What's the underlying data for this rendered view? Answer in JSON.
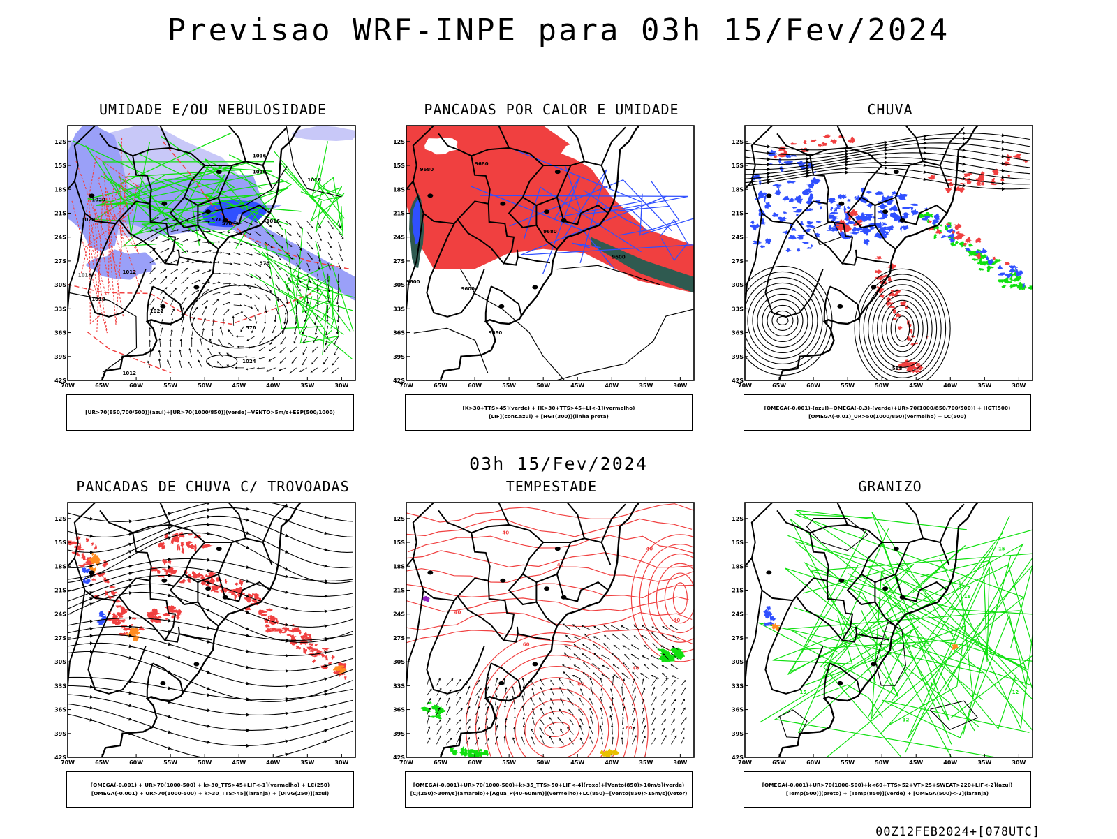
{
  "header": {
    "title": "Previsao WRF-INPE  para 03h 15/Fev/2024"
  },
  "mid_title": "03h 15/Fev/2024",
  "footer": "00Z12FEB2024+[078UTC]",
  "axes": {
    "lat_labels": [
      "12S",
      "15S",
      "18S",
      "21S",
      "24S",
      "27S",
      "30S",
      "33S",
      "36S",
      "39S",
      "42S"
    ],
    "lon_labels": [
      "70W",
      "65W",
      "60W",
      "55W",
      "50W",
      "45W",
      "40W",
      "35W",
      "30W"
    ]
  },
  "colors": {
    "blue": "#3050ff",
    "light_blue": "#9aa0f8",
    "lavender": "#c8c8f8",
    "red": "#f04040",
    "green": "#10e010",
    "dark_teal": "#2f5a50",
    "orange": "#ff8c20",
    "yellow": "#e8c000",
    "purple": "#9020c0",
    "black": "#000000"
  },
  "panels": [
    {
      "title": "UMIDADE E/OU NEBULOSIDADE",
      "legend": [
        "[UR>70(850/700/500)](azul)+[UR>70(1000/850)](verde)+VENTO>5m/s+ESP(500/1000)"
      ],
      "contour_labels": [
        "1016",
        "1016",
        "1016",
        "1020",
        "1020",
        "1018",
        "1018",
        "1012",
        "1016",
        "1020",
        "1024",
        "1012",
        "576",
        "570",
        "570",
        "576"
      ]
    },
    {
      "title": "PANCADAS POR CALOR E UMIDADE",
      "legend": [
        "[K>30+TTS>45](verde) + [K>30+TTS>45+LI<-1](vermelho)",
        "[LIF](cont.azul) + [HGT(300)](linha preta)"
      ],
      "contour_labels": [
        "9680",
        "9680",
        "9680",
        "9600",
        "9680",
        "9600",
        "9600"
      ]
    },
    {
      "title": "CHUVA",
      "legend": [
        "[OMEGA(-0.001)-(azul)+OMEGA(-0.3)-(verde)+UR>70(1000/850/700/500)] + HGT(500)",
        "[OMEGA(-0.01)_UR>50(1000/850)(vermelho) + LC(500)"
      ],
      "contour_labels": [
        "588"
      ]
    },
    {
      "title": "PANCADAS DE CHUVA C/ TROVOADAS",
      "legend": [
        "[OMEGA(-0.001) + UR>70(1000-500) + k>30_TTS>45+LIF<-1](vermelho) + LC(250)",
        "[OMEGA(-0.001) + UR>70(1000-500) + k>30_TTS>45](laranja) + [DIVG(250)](azul)"
      ],
      "contour_labels": []
    },
    {
      "title": "TEMPESTADE",
      "legend": [
        "[OMEGA(-0.001)+UR>70(1000-500)+k>35_TTS>50+LIF<-4](roxo)+[Vento(850)>10m/s](verde)",
        "[CJ(250)>30m/s](amarelo)+[Agua_P(40-60mm)](vermelho)+LC(850)+[Vento(850)>15m/s](vetor)"
      ],
      "contour_labels": [
        "40",
        "40",
        "40",
        "40",
        "40",
        "60",
        "60",
        "60",
        "40"
      ]
    },
    {
      "title": "GRANIZO",
      "legend": [
        "[OMEGA(-0.001)+UR>70(1000-500)+k<60+TTS>52+VT>25+SWEAT>220+LIF<-2](azul)",
        "[Temp(500)](preto) + [Temp(850)](verde) + [OMEGA(500)<-2](laranja)"
      ],
      "contour_labels": [
        "15",
        "18",
        "15",
        "12",
        "18",
        "15",
        "12",
        "15"
      ]
    }
  ]
}
